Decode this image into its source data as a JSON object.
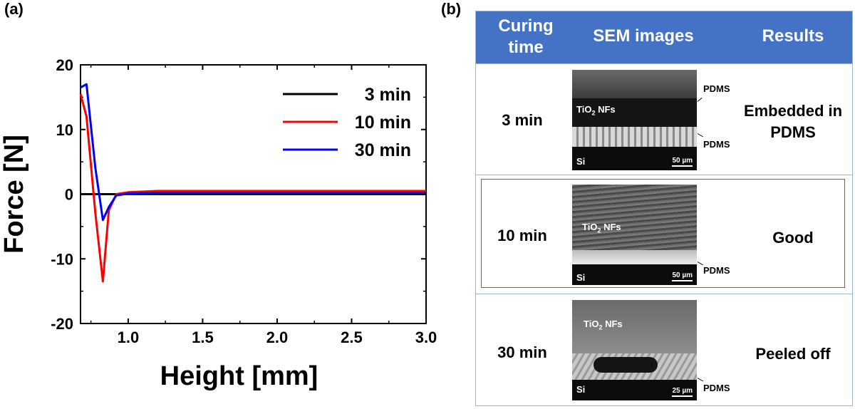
{
  "panel_a_label": "(a)",
  "panel_b_label": "(b)",
  "chart_data": {
    "type": "line",
    "xlabel": "Height [mm]",
    "ylabel": "Force [N]",
    "xlim": [
      0.68,
      3.0
    ],
    "ylim": [
      -20,
      20
    ],
    "xticks": [
      "1.0",
      "1.5",
      "2.0",
      "2.5",
      "3.0"
    ],
    "yticks": [
      "20",
      "10",
      "0",
      "-10",
      "-20"
    ],
    "legend_position": "top-right",
    "series": [
      {
        "name": "3 min",
        "color": "#000000",
        "x": [
          0.68,
          3.0
        ],
        "y": [
          0,
          0
        ]
      },
      {
        "name": "10 min",
        "color": "#ff0000",
        "x": [
          0.68,
          0.72,
          0.78,
          0.83,
          0.87,
          0.92,
          1.0,
          1.2,
          3.0
        ],
        "y": [
          15.5,
          12.0,
          -3.0,
          -13.5,
          -2.5,
          0.0,
          0.3,
          0.5,
          0.5
        ]
      },
      {
        "name": "30 min",
        "color": "#0000ff",
        "x": [
          0.68,
          0.72,
          0.78,
          0.83,
          0.87,
          0.92,
          1.0,
          1.2,
          3.0
        ],
        "y": [
          16.5,
          17.0,
          4.0,
          -4.0,
          -2.0,
          -0.2,
          0.1,
          0.2,
          0.2
        ]
      }
    ]
  },
  "table": {
    "headers": [
      "Curing\ntime",
      "SEM images",
      "Results"
    ],
    "rows": [
      {
        "time": "3 min",
        "result": "Embedded in\nPDMS",
        "layer_label": "TiO2 NFs",
        "substrate": "Si",
        "scale": "50 µm",
        "annotations": [
          "PDMS",
          "PDMS"
        ]
      },
      {
        "time": "10 min",
        "result": "Good",
        "layer_label": "TiO2 NFs",
        "substrate": "Si",
        "scale": "50 µm",
        "annotations": [
          "PDMS"
        ]
      },
      {
        "time": "30 min",
        "result": "Peeled off",
        "layer_label": "TiO2 NFs",
        "substrate": "Si",
        "scale": "25 µm",
        "annotations": [
          "PDMS"
        ]
      }
    ]
  },
  "colors": {
    "header_bg": "#4472c4",
    "highlight_border": "#e53030",
    "table_border": "#9db7d6"
  }
}
